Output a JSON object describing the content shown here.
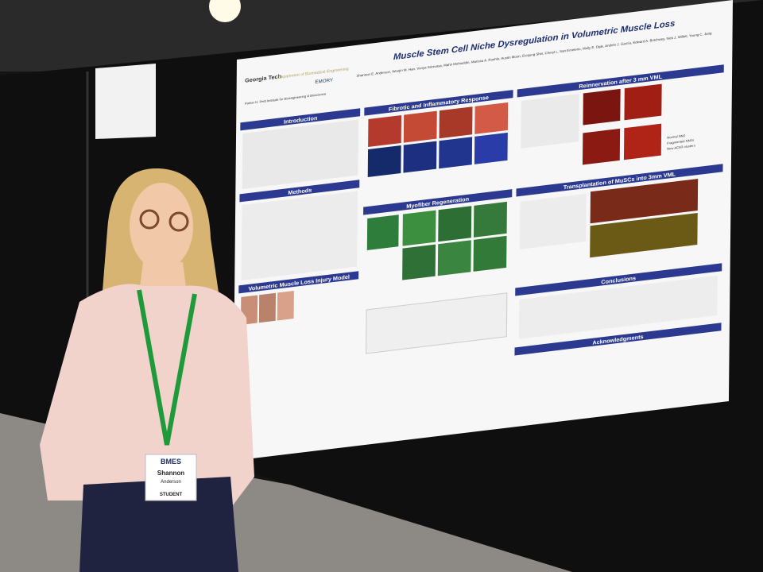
{
  "poster": {
    "title": "Muscle Stem Cell Niche Dysregulation in Volumetric Muscle Loss",
    "authors": "Shannon E. Anderson, Woojin M. Han, Vunya Srinivasa, Mahir Mohiuddin, Marissa A. Ruehle, Austin Moon, Eunjung Shin, Cheryl L. San Emeterio, Molly E. Ogle, Andrés J. García, Edward A. Botchwey, Nick J. Willett, Young C. Jang",
    "logos": {
      "school": "Georgia Tech",
      "department": "Department of Biomedical Engineering",
      "university": "EMORY",
      "institute": "Parker H. Petit Institute for Bioengineering & Bioscience"
    },
    "sections": {
      "introduction": "Introduction",
      "methods": "Methods",
      "injury_model": "Volumetric Muscle Loss Injury Model",
      "fibrotic": "Fibrotic and Inflammatory Response",
      "myofiber": "Myofiber Regeneration",
      "reinnervation": "Reinnervation after 3 mm VML",
      "transplantation": "Transplantation of MuSCs into 3mm VML",
      "conclusions": "Conclusions",
      "acknowledgments": "Acknowledgments"
    },
    "reinnervation_categories": [
      "Normal NMJ",
      "Fragmented NMJs",
      "New AChR clusters"
    ]
  },
  "badge": {
    "org": "BMES",
    "first_name": "Shannon",
    "last_name": "Anderson",
    "role": "STUDENT"
  }
}
